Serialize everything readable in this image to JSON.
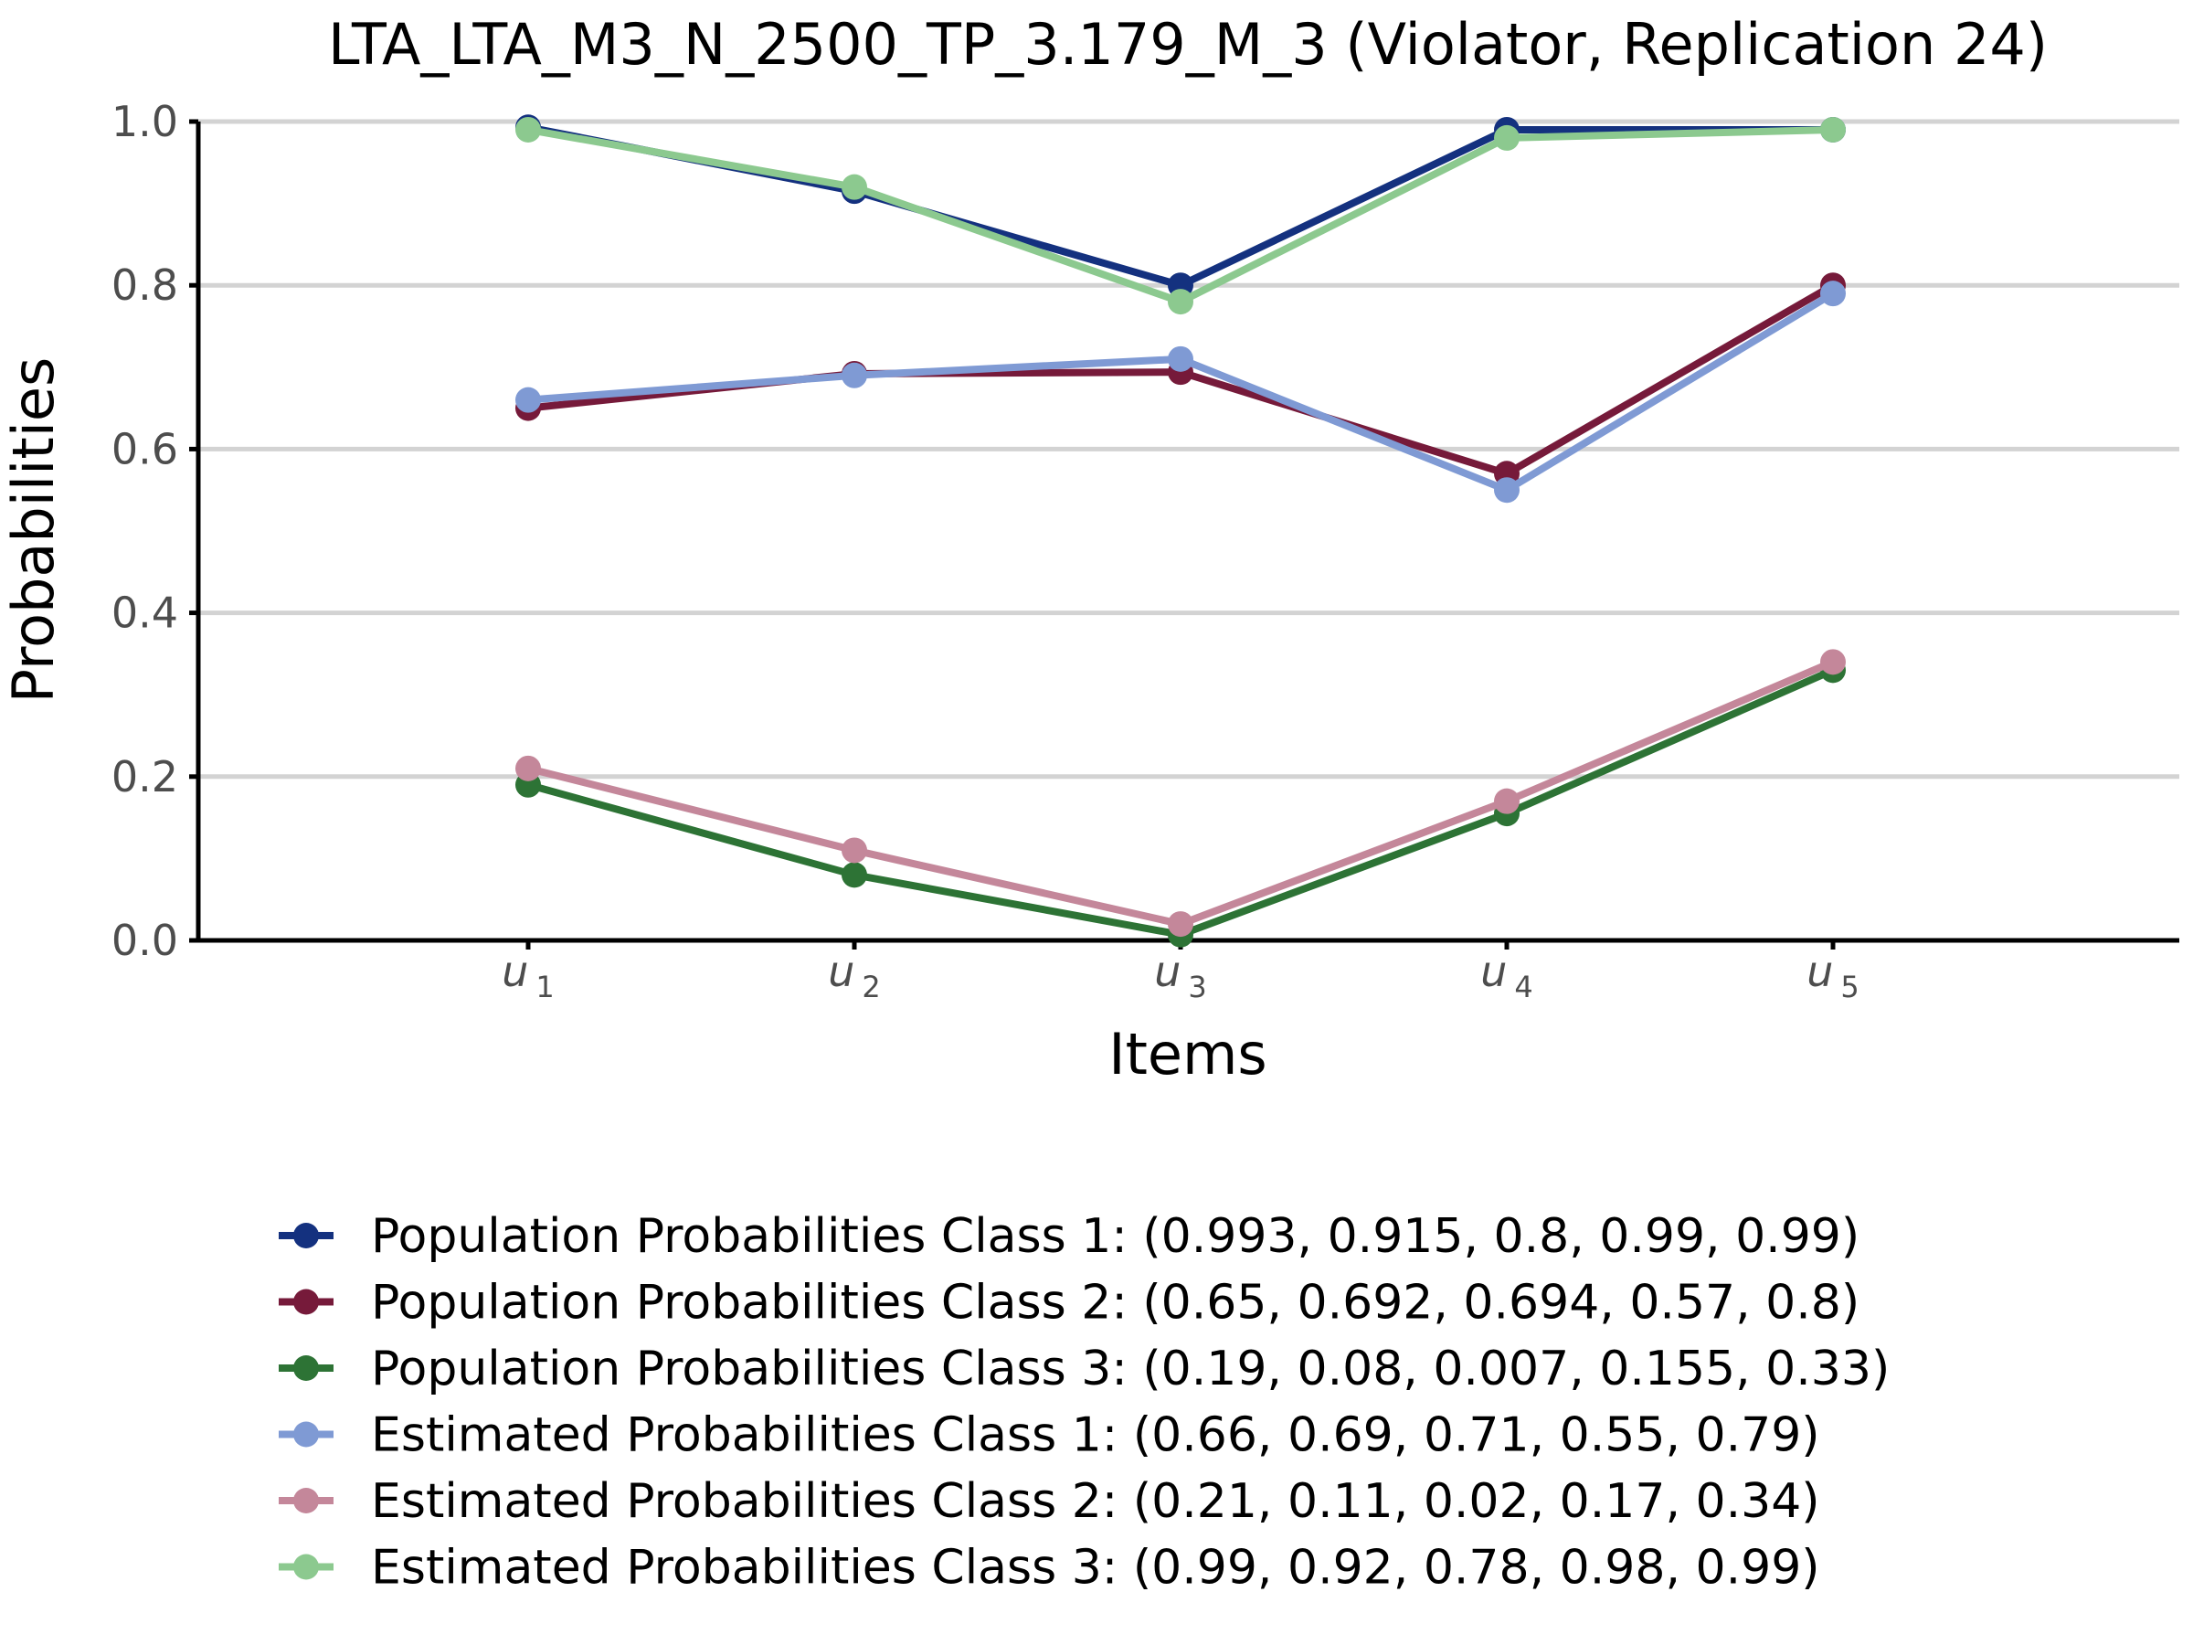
{
  "chart_data": {
    "type": "line",
    "title": "LTA_LTA_M3_N_2500_TP_3.179_M_3 (Violator, Replication 24)",
    "xlabel": "Items",
    "ylabel": "Probabilities",
    "x_ticks": [
      {
        "base": "u",
        "sub": "1"
      },
      {
        "base": "u",
        "sub": "2"
      },
      {
        "base": "u",
        "sub": "3"
      },
      {
        "base": "u",
        "sub": "4"
      },
      {
        "base": "u",
        "sub": "5"
      }
    ],
    "ylim": [
      0,
      1
    ],
    "y_ticks": [
      "0.0",
      "0.2",
      "0.4",
      "0.6",
      "0.8",
      "1.0"
    ],
    "grid": "horizontal",
    "legend_position": "bottom",
    "series": [
      {
        "name": "Population Probabilities Class 1: (0.993, 0.915, 0.8, 0.99, 0.99)",
        "values": [
          0.993,
          0.915,
          0.8,
          0.99,
          0.99
        ],
        "color": "#14317f"
      },
      {
        "name": "Population Probabilities Class 2: (0.65, 0.692, 0.694, 0.57, 0.8)",
        "values": [
          0.65,
          0.692,
          0.694,
          0.57,
          0.8
        ],
        "color": "#761a3a"
      },
      {
        "name": "Population Probabilities Class 3: (0.19, 0.08, 0.007, 0.155, 0.33)",
        "values": [
          0.19,
          0.08,
          0.007,
          0.155,
          0.33
        ],
        "color": "#2d7335"
      },
      {
        "name": "Estimated Probabilities Class 1: (0.66, 0.69, 0.71, 0.55, 0.79)",
        "values": [
          0.66,
          0.69,
          0.71,
          0.55,
          0.79
        ],
        "color": "#7f9ad4"
      },
      {
        "name": "Estimated Probabilities Class 2: (0.21, 0.11, 0.02, 0.17, 0.34)",
        "values": [
          0.21,
          0.11,
          0.02,
          0.17,
          0.34
        ],
        "color": "#c4879a"
      },
      {
        "name": "Estimated Probabilities Class 3: (0.99, 0.92, 0.78, 0.98, 0.99)",
        "values": [
          0.99,
          0.92,
          0.78,
          0.98,
          0.99
        ],
        "color": "#8cc98f"
      }
    ]
  }
}
